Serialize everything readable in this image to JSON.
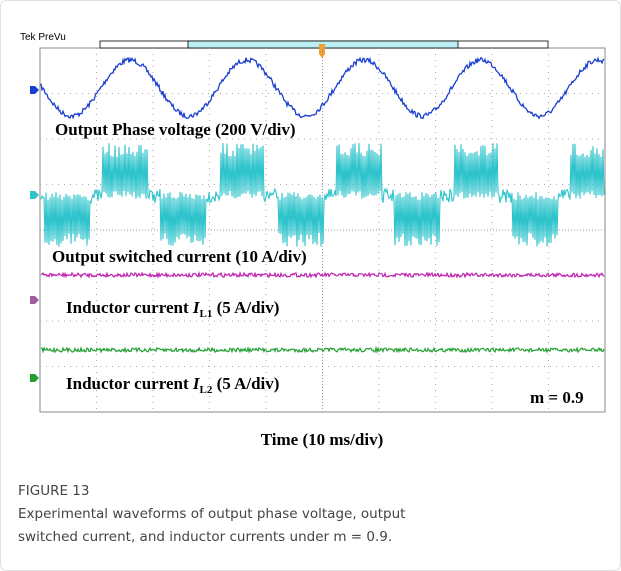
{
  "figure": {
    "scope_header": "Tek PreVu",
    "traces": [
      {
        "label": "Output Phase voltage (200 V/div)"
      },
      {
        "label": "Output switched current (10 A/div)"
      },
      {
        "label_parts": [
          "Inductor current ",
          "I",
          "L1",
          " (5 A/div)"
        ]
      },
      {
        "label_parts": [
          "Inductor current ",
          "I",
          "L2",
          " (5 A/div)"
        ]
      }
    ],
    "modulation": "m = 0.9",
    "time_axis": "Time (10 ms/div)",
    "caption": {
      "number": "FIGURE 13",
      "lines": [
        "Experimental waveforms of output phase voltage, output",
        "switched current, and inductor currents under m = 0.9."
      ]
    }
  }
}
